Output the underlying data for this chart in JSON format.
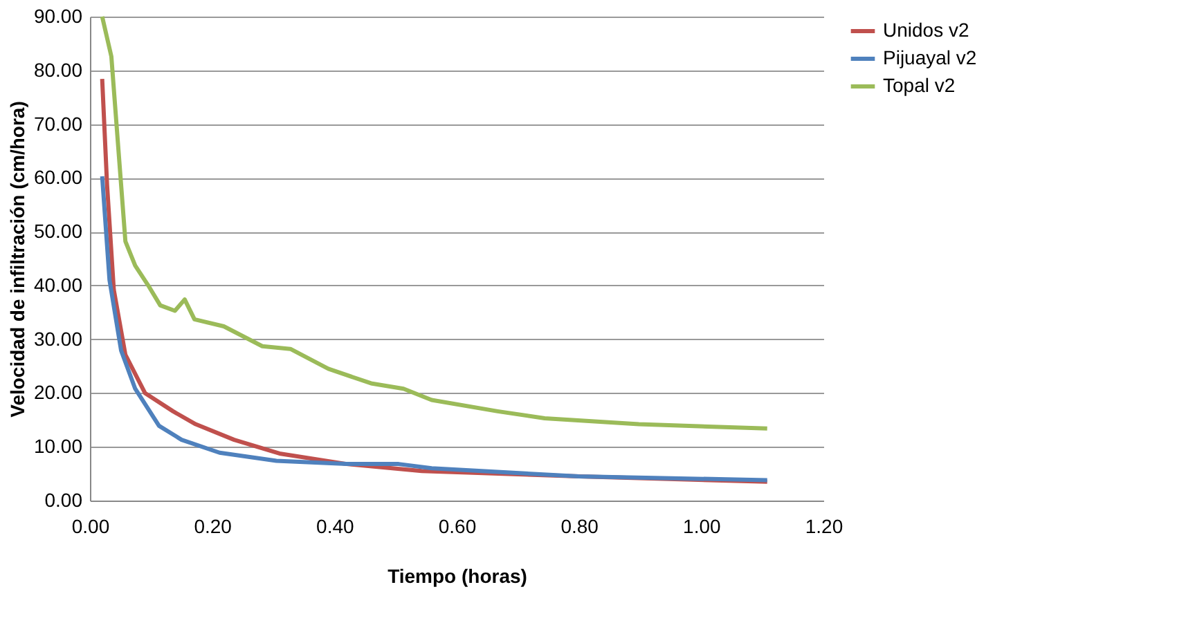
{
  "chart_data": {
    "type": "line",
    "xlabel": "Tiempo (horas)",
    "ylabel": "Velocidad de infiltración (cm/hora)",
    "xlim": [
      0,
      1.2
    ],
    "xticks": [
      {
        "value": 0,
        "label": "0.00"
      },
      {
        "value": 0.2,
        "label": "0.20"
      },
      {
        "value": 0.4,
        "label": "0.40"
      },
      {
        "value": 0.6,
        "label": "0.60"
      },
      {
        "value": 0.8,
        "label": "0.80"
      },
      {
        "value": 1.0,
        "label": "1.00"
      },
      {
        "value": 1.2,
        "label": "1.20"
      }
    ],
    "ylim": [
      0,
      90
    ],
    "yticks": [
      {
        "value": 0,
        "label": "0.00"
      },
      {
        "value": 10,
        "label": "10.00"
      },
      {
        "value": 20,
        "label": "20.00"
      },
      {
        "value": 30,
        "label": "30.00"
      },
      {
        "value": 40,
        "label": "40.00"
      },
      {
        "value": 50,
        "label": "50.00"
      },
      {
        "value": 60,
        "label": "60.00"
      },
      {
        "value": 70,
        "label": "70.00"
      },
      {
        "value": 80,
        "label": "80.00"
      },
      {
        "value": 90,
        "label": "90.00"
      }
    ],
    "grid": "y",
    "legend": "right",
    "marker": "none",
    "line_style": "solid",
    "series": [
      {
        "name": "Unidos v2",
        "color": "#c0504d",
        "x": [
          0.02,
          0.028,
          0.039,
          0.058,
          0.09,
          0.136,
          0.173,
          0.236,
          0.312,
          0.42,
          0.543,
          0.8,
          1.108
        ],
        "values": [
          78.4,
          58.7,
          39.2,
          27.1,
          20.0,
          16.6,
          14.2,
          11.3,
          8.7,
          6.8,
          5.5,
          4.5,
          3.5
        ]
      },
      {
        "name": "Pijuayal v2",
        "color": "#4f81bd",
        "x": [
          0.02,
          0.032,
          0.051,
          0.074,
          0.113,
          0.15,
          0.212,
          0.305,
          0.42,
          0.505,
          0.559,
          0.8,
          1.108
        ],
        "values": [
          60.3,
          41.0,
          27.9,
          20.8,
          13.9,
          11.3,
          8.9,
          7.4,
          6.8,
          6.8,
          6.0,
          4.5,
          3.8
        ]
      },
      {
        "name": "Topal v2",
        "color": "#9bbb59",
        "x": [
          0.02,
          0.035,
          0.058,
          0.074,
          0.097,
          0.115,
          0.139,
          0.155,
          0.171,
          0.219,
          0.282,
          0.328,
          0.39,
          0.46,
          0.513,
          0.559,
          0.667,
          0.744,
          0.898,
          1.108
        ],
        "values": [
          90.0,
          82.6,
          48.2,
          43.7,
          39.7,
          36.3,
          35.3,
          37.4,
          33.7,
          32.4,
          28.7,
          28.2,
          24.5,
          21.8,
          20.8,
          18.7,
          16.6,
          15.3,
          14.2,
          13.4
        ]
      }
    ]
  }
}
